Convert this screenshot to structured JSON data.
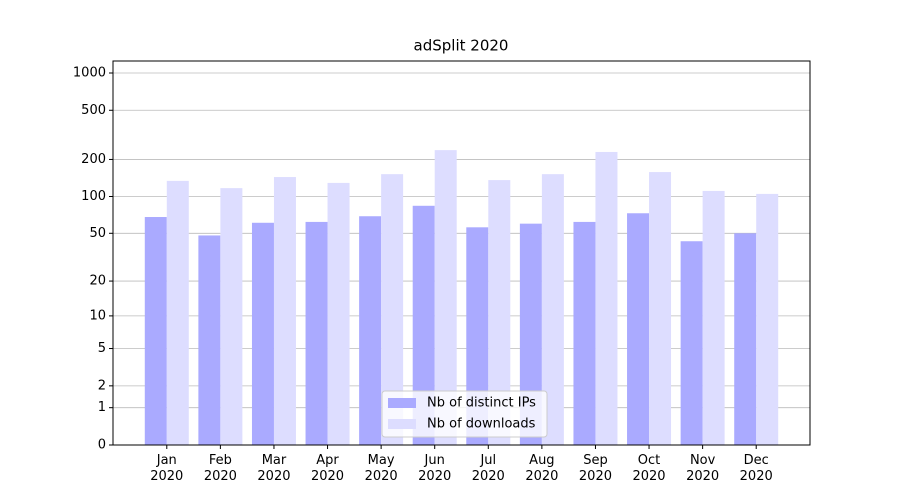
{
  "chart_data": {
    "type": "bar",
    "title": "adSplit 2020",
    "categories": [
      "Jan\n2020",
      "Feb\n2020",
      "Mar\n2020",
      "Apr\n2020",
      "May\n2020",
      "Jun\n2020",
      "Jul\n2020",
      "Aug\n2020",
      "Sep\n2020",
      "Oct\n2020",
      "Nov\n2020",
      "Dec\n2020"
    ],
    "series": [
      {
        "name": "Nb of distinct IPs",
        "color": "#aaaaff",
        "values": [
          68,
          48,
          61,
          62,
          69,
          84,
          56,
          60,
          62,
          73,
          43,
          50
        ]
      },
      {
        "name": "Nb of downloads",
        "color": "#ddddff",
        "values": [
          134,
          117,
          144,
          129,
          152,
          238,
          136,
          152,
          230,
          158,
          111,
          105
        ]
      }
    ],
    "yscale": "log1p",
    "ylim": [
      0,
      1250
    ],
    "yticks": [
      0,
      1,
      2,
      5,
      10,
      20,
      50,
      100,
      200,
      500,
      1000
    ],
    "grid": true,
    "legend": "lower center"
  }
}
